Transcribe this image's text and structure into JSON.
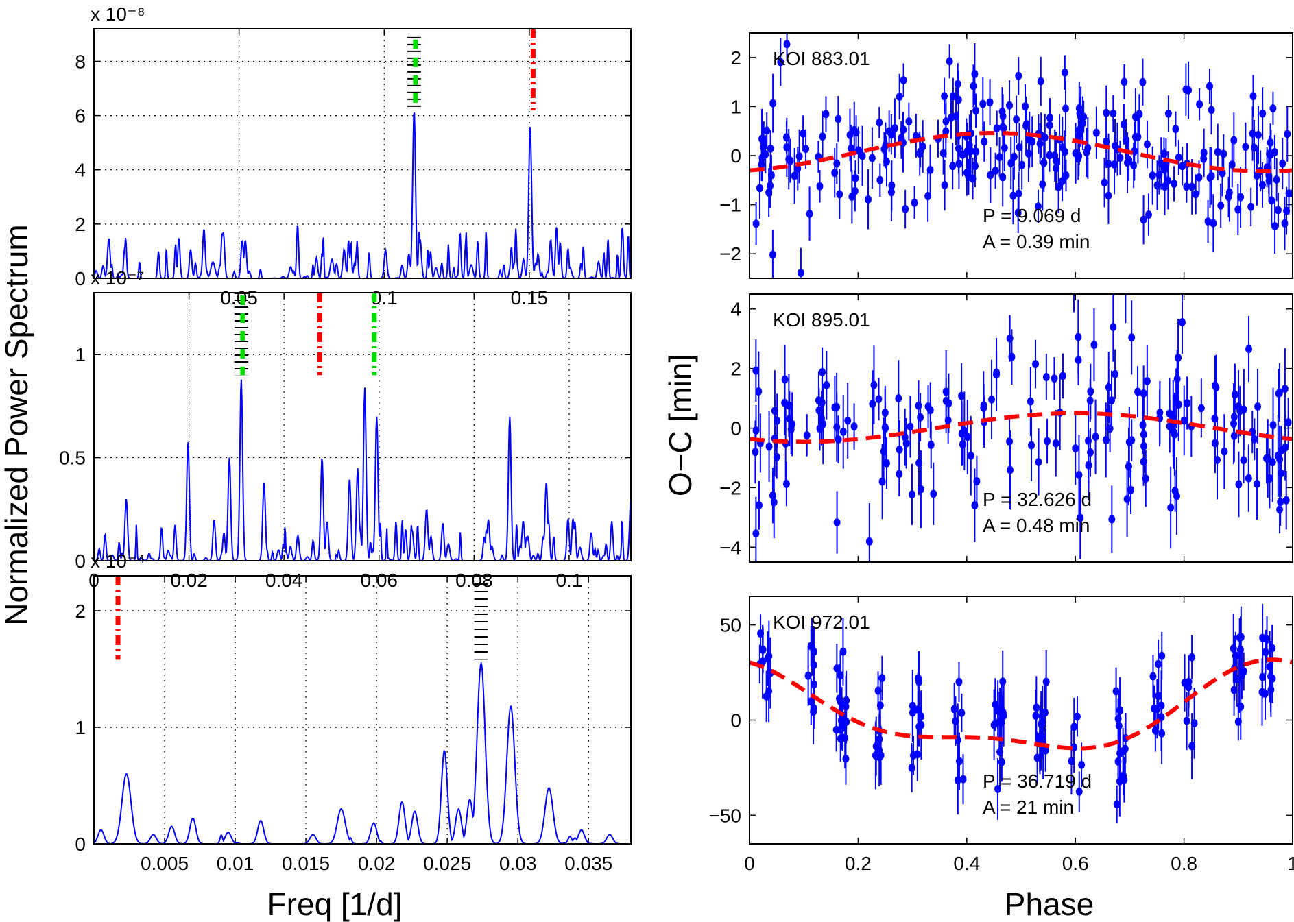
{
  "figure": {
    "ylabel_left": "Normalized Power Spectrum",
    "xlabel_left": "Freq [1/d]",
    "ylabel_right": "O−C [min]",
    "xlabel_right": "Phase",
    "colors": {
      "spectrum": "#0000ff",
      "points": "#0000ff",
      "fit": "#ff0000",
      "marker_black": "#000000",
      "marker_green": "#00dd00",
      "marker_red": "#ff0000"
    }
  },
  "chart_data": [
    {
      "type": "line",
      "panel": "spectrum-1",
      "exponent_label": "x 10⁻⁸",
      "xlim": [
        0.0,
        0.185
      ],
      "ylim": [
        0,
        9.2
      ],
      "xticks": [
        0.05,
        0.1,
        0.15
      ],
      "xtick_labels": [
        "0.05",
        "0.1",
        "0.15"
      ],
      "yticks": [
        0,
        2,
        4,
        6,
        8
      ],
      "ytick_labels": [
        "0",
        "2",
        "4",
        "6",
        "8"
      ],
      "grid": true,
      "peaks": [
        {
          "x": 0.1103,
          "y": 6.2,
          "w": 0.0007
        },
        {
          "x": 0.1503,
          "y": 5.6,
          "w": 0.0007
        },
        {
          "x": 0.1085,
          "y": 0.9,
          "w": 0.0006
        },
        {
          "x": 0.1125,
          "y": 1.1,
          "w": 0.0006
        },
        {
          "x": 0.148,
          "y": 0.7,
          "w": 0.0006
        },
        {
          "x": 0.153,
          "y": 0.9,
          "w": 0.0006
        },
        {
          "x": 0.038,
          "y": 0.6,
          "w": 0.001
        },
        {
          "x": 0.041,
          "y": 0.6,
          "w": 0.001
        },
        {
          "x": 0.082,
          "y": 0.7,
          "w": 0.0008
        },
        {
          "x": 0.13,
          "y": 0.5,
          "w": 0.0008
        },
        {
          "x": 0.145,
          "y": 0.6,
          "w": 0.0008
        },
        {
          "x": 0.164,
          "y": 0.4,
          "w": 0.0008
        }
      ],
      "noise_level": 0.22,
      "markers": [
        {
          "x": 0.1103,
          "y_range": [
            6.2,
            8.9
          ],
          "style": "black-green"
        },
        {
          "x": 0.1513,
          "y_range": [
            6.2,
            9.2
          ],
          "style": "red"
        }
      ]
    },
    {
      "type": "line",
      "panel": "spectrum-2",
      "exponent_label": "x 10⁻⁷",
      "xlim": [
        0.0,
        0.113
      ],
      "ylim": [
        0,
        1.3
      ],
      "xticks": [
        0,
        0.02,
        0.04,
        0.06,
        0.08,
        0.1
      ],
      "xtick_labels": [
        "0",
        "0.02",
        "0.04",
        "0.06",
        "0.08",
        "0.1"
      ],
      "yticks": [
        0,
        0.5,
        1
      ],
      "ytick_labels": [
        "0",
        "0.5",
        "1"
      ],
      "grid": true,
      "peaks": [
        {
          "x": 0.0068,
          "y": 0.3,
          "w": 0.0004
        },
        {
          "x": 0.0198,
          "y": 0.58,
          "w": 0.0004
        },
        {
          "x": 0.0285,
          "y": 0.5,
          "w": 0.0004
        },
        {
          "x": 0.031,
          "y": 0.88,
          "w": 0.0004
        },
        {
          "x": 0.0358,
          "y": 0.38,
          "w": 0.0004
        },
        {
          "x": 0.048,
          "y": 0.5,
          "w": 0.0004
        },
        {
          "x": 0.0538,
          "y": 0.4,
          "w": 0.0004
        },
        {
          "x": 0.057,
          "y": 0.84,
          "w": 0.0004
        },
        {
          "x": 0.0595,
          "y": 0.7,
          "w": 0.0004
        },
        {
          "x": 0.0555,
          "y": 0.45,
          "w": 0.0004
        },
        {
          "x": 0.0875,
          "y": 0.7,
          "w": 0.0004
        },
        {
          "x": 0.0952,
          "y": 0.38,
          "w": 0.0004
        },
        {
          "x": 0.113,
          "y": 0.3,
          "w": 0.0004
        },
        {
          "x": 0.07,
          "y": 0.25,
          "w": 0.0004
        },
        {
          "x": 0.083,
          "y": 0.2,
          "w": 0.0004
        }
      ],
      "noise_level": 0.16,
      "markers": [
        {
          "x": 0.031,
          "y_range": [
            0.9,
            1.3
          ],
          "style": "black-green"
        },
        {
          "x": 0.0475,
          "y_range": [
            0.9,
            1.3
          ],
          "style": "red"
        },
        {
          "x": 0.059,
          "y_range": [
            0.9,
            1.3
          ],
          "style": "green"
        }
      ]
    },
    {
      "type": "line",
      "panel": "spectrum-3",
      "exponent_label": "x 10⁻⁴",
      "xlim": [
        0.0,
        0.038
      ],
      "ylim": [
        0,
        2.3
      ],
      "xticks": [
        0.005,
        0.01,
        0.015,
        0.02,
        0.025,
        0.03,
        0.035
      ],
      "xtick_labels": [
        "0.005",
        "0.01",
        "0.015",
        "0.02",
        "0.025",
        "0.03",
        "0.035"
      ],
      "yticks": [
        0,
        1,
        2
      ],
      "ytick_labels": [
        "0",
        "1",
        "2"
      ],
      "grid": true,
      "peaks": [
        {
          "x": 0.0023,
          "y": 0.6,
          "w": 0.00045
        },
        {
          "x": 0.0005,
          "y": 0.12,
          "w": 0.0003
        },
        {
          "x": 0.0042,
          "y": 0.08,
          "w": 0.0003
        },
        {
          "x": 0.0055,
          "y": 0.15,
          "w": 0.0003
        },
        {
          "x": 0.007,
          "y": 0.22,
          "w": 0.0003
        },
        {
          "x": 0.0095,
          "y": 0.1,
          "w": 0.0003
        },
        {
          "x": 0.0118,
          "y": 0.2,
          "w": 0.0003
        },
        {
          "x": 0.0155,
          "y": 0.08,
          "w": 0.0003
        },
        {
          "x": 0.0175,
          "y": 0.3,
          "w": 0.0004
        },
        {
          "x": 0.0198,
          "y": 0.18,
          "w": 0.0003
        },
        {
          "x": 0.0218,
          "y": 0.36,
          "w": 0.0003
        },
        {
          "x": 0.0227,
          "y": 0.28,
          "w": 0.0003
        },
        {
          "x": 0.0248,
          "y": 0.8,
          "w": 0.0003
        },
        {
          "x": 0.0258,
          "y": 0.3,
          "w": 0.0003
        },
        {
          "x": 0.0266,
          "y": 0.38,
          "w": 0.0003
        },
        {
          "x": 0.0274,
          "y": 1.55,
          "w": 0.0004
        },
        {
          "x": 0.0295,
          "y": 1.18,
          "w": 0.0004
        },
        {
          "x": 0.0322,
          "y": 0.48,
          "w": 0.0004
        },
        {
          "x": 0.0345,
          "y": 0.12,
          "w": 0.0003
        },
        {
          "x": 0.0365,
          "y": 0.08,
          "w": 0.0003
        }
      ],
      "noise_level": 0.04,
      "markers": [
        {
          "x": 0.0274,
          "y_range": [
            1.58,
            2.3
          ],
          "style": "black"
        },
        {
          "x": 0.0017,
          "y_range": [
            1.58,
            2.3
          ],
          "style": "red"
        }
      ]
    },
    {
      "type": "scatter",
      "panel": "oc-1",
      "label": "KOI 883.01",
      "period_text": "P = 9.069 d",
      "amp_text": "A = 0.39 min",
      "xlim": [
        0,
        1
      ],
      "ylim": [
        -2.5,
        2.5
      ],
      "yticks": [
        -2,
        -1,
        0,
        1,
        2
      ],
      "ytick_labels": [
        "−2",
        "−1",
        "0",
        "1",
        "2"
      ],
      "show_xticklabels": false,
      "fit": {
        "amplitude": 0.39,
        "phase_peak": 0.45,
        "offset": 0.07,
        "harmonic2": 0.0,
        "harmonic2_phase": 0.0
      },
      "points": {
        "n": 260,
        "scatter": 0.7,
        "errbar": 0.45,
        "seed": 11,
        "clusters": 0
      }
    },
    {
      "type": "scatter",
      "panel": "oc-2",
      "label": "KOI 895.01",
      "period_text": "P = 32.626 d",
      "amp_text": "A = 0.48 min",
      "xlim": [
        0,
        1
      ],
      "ylim": [
        -4.5,
        4.5
      ],
      "yticks": [
        -4,
        -2,
        0,
        2,
        4
      ],
      "ytick_labels": [
        "−4",
        "−2",
        "0",
        "2",
        "4"
      ],
      "show_xticklabels": false,
      "fit": {
        "amplitude": 0.48,
        "phase_peak": 0.6,
        "offset": 0.02,
        "harmonic2": 0.0,
        "harmonic2_phase": 0.0
      },
      "points": {
        "n": 190,
        "scatter": 1.4,
        "errbar": 1.0,
        "seed": 23,
        "clusters": 34
      }
    },
    {
      "type": "scatter",
      "panel": "oc-3",
      "label": "KOI 972.01",
      "period_text": "P = 36.719 d",
      "amp_text": "A = 21 min",
      "xlim": [
        0,
        1
      ],
      "ylim": [
        -65,
        65
      ],
      "yticks": [
        -50,
        0,
        50
      ],
      "ytick_labels": [
        "−50",
        "0",
        "50"
      ],
      "xticks": [
        0,
        0.2,
        0.4,
        0.6,
        0.8,
        1
      ],
      "xtick_labels": [
        "0",
        "0.2",
        "0.4",
        "0.6",
        "0.8",
        "1"
      ],
      "show_xticklabels": true,
      "fit": {
        "amplitude": 21,
        "phase_peak": 0.98,
        "offset": 3,
        "harmonic2": 8,
        "harmonic2_phase": 0.45
      },
      "points": {
        "n": 150,
        "scatter": 16,
        "errbar": 14,
        "seed": 37,
        "clusters": 14
      }
    }
  ]
}
